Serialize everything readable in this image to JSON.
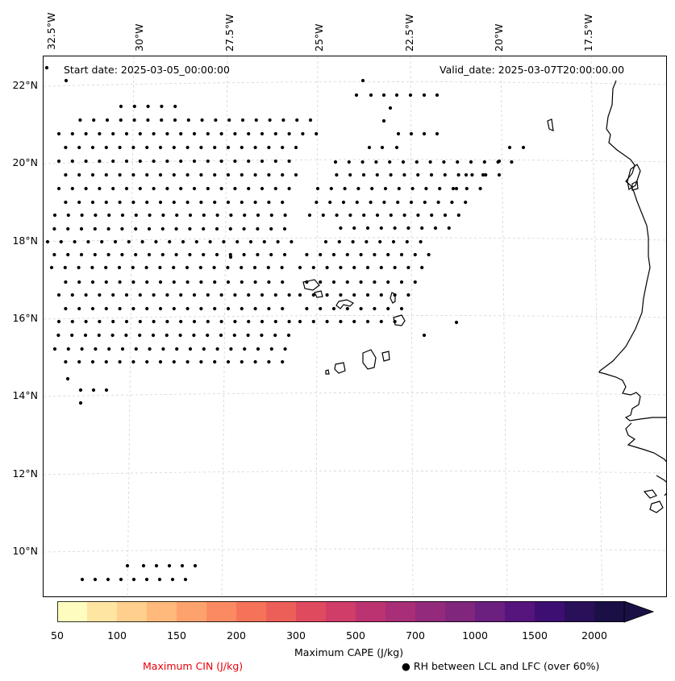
{
  "header": {
    "start_date": "Start date: 2025-03-05_00:00:00",
    "valid_date": "Valid_date: 2025-03-07T20:00:00.00"
  },
  "axes": {
    "lon_ticks": [
      "32.5°W",
      "30°W",
      "27.5°W",
      "25°W",
      "22.5°W",
      "20°W",
      "17.5°W"
    ],
    "lat_ticks": [
      "22°N",
      "20°N",
      "18°N",
      "16°N",
      "14°N",
      "12°N",
      "10°N"
    ],
    "lon_range_deg": [
      -32.8,
      -16.2
    ],
    "lat_range_deg": [
      8.9,
      22.7
    ]
  },
  "colorbar": {
    "label": "Maximum CAPE (J/kg)",
    "tick_labels": [
      "50",
      "100",
      "150",
      "200",
      "300",
      "500",
      "700",
      "1000",
      "1500",
      "2000"
    ],
    "colors": [
      "#fefdbf",
      "#fee5a1",
      "#fecf8d",
      "#feb97b",
      "#fea26d",
      "#fb8a62",
      "#f57459",
      "#ec5e58",
      "#df4a5f",
      "#cf3d68",
      "#bc3372",
      "#a72e77",
      "#932a7b",
      "#80267d",
      "#6b1f7e",
      "#56147d",
      "#3e0f72",
      "#2a0f59",
      "#1b1045"
    ],
    "extend": "max"
  },
  "legend": {
    "cin_label": "Maximum CIN (J/kg)",
    "cin_color": "#e8000b",
    "rh_symbol": "●",
    "rh_label": "RH between LCL and LFC (over 60%)"
  },
  "gridlines": {
    "style": "dashed",
    "color": "#cccccc"
  }
}
